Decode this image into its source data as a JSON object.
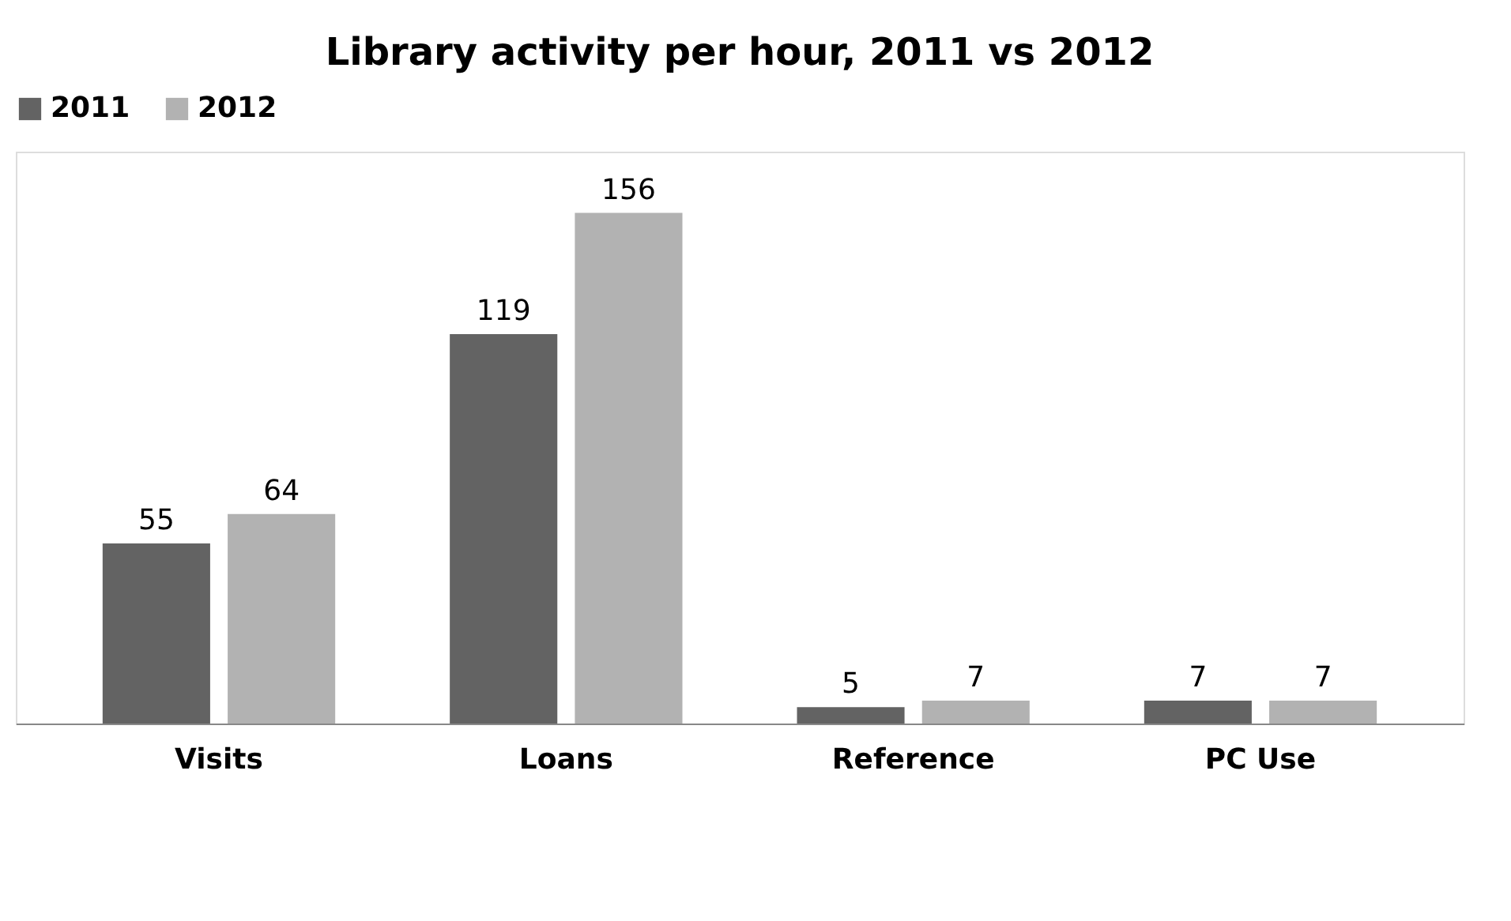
{
  "chart_data": {
    "type": "bar",
    "title": "Library activity per hour, 2011 vs 2012",
    "categories": [
      "Visits",
      "Loans",
      "Reference",
      "PC Use"
    ],
    "series": [
      {
        "name": "2011",
        "color": "#636363",
        "values": [
          55,
          119,
          5,
          7
        ]
      },
      {
        "name": "2012",
        "color": "#b2b2b2",
        "values": [
          64,
          156,
          7,
          7
        ]
      }
    ],
    "data_labels": true,
    "legend": "top",
    "grid": false
  }
}
